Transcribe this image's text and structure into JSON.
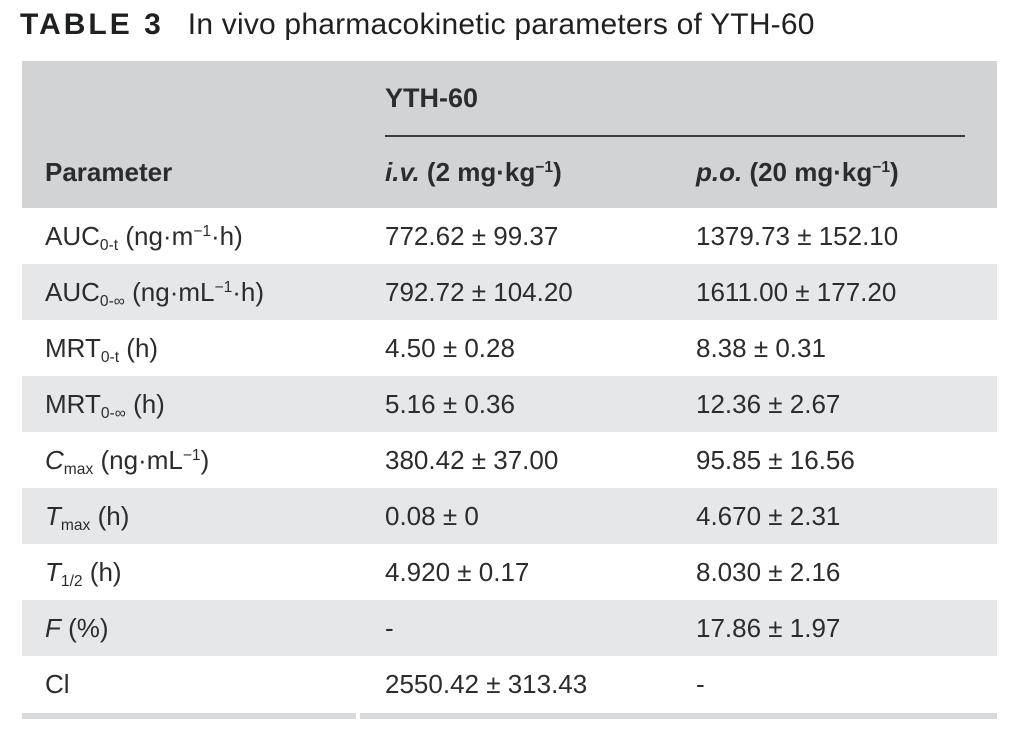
{
  "caption": {
    "tag": "TABLE 3",
    "text": "In vivo pharmacokinetic parameters of YTH-60"
  },
  "table": {
    "group_header": "YTH-60",
    "columns": {
      "param": "Parameter",
      "iv": "*i.v.* (2 mg·kg^−1^)",
      "po": "*p.o.* (20 mg·kg^−1^)"
    },
    "rows": [
      {
        "param": "AUC~0-t~ (ng·m^−1^·h)",
        "iv": "772.62 ± 99.37",
        "po": "1379.73 ± 152.10"
      },
      {
        "param": "AUC~0-∞~ (ng·mL^−1^·h)",
        "iv": "792.72 ± 104.20",
        "po": "1611.00 ± 177.20"
      },
      {
        "param": "MRT~0-t~ (h)",
        "iv": "4.50 ± 0.28",
        "po": "8.38 ± 0.31"
      },
      {
        "param": "MRT~0-∞~ (h)",
        "iv": "5.16 ± 0.36",
        "po": "12.36 ± 2.67"
      },
      {
        "param": "*C*~max~ (ng·mL^−1^)",
        "iv": "380.42 ± 37.00",
        "po": "95.85 ± 16.56"
      },
      {
        "param": "*T*~max~ (h)",
        "iv": "0.08 ± 0",
        "po": "4.670 ± 2.31"
      },
      {
        "param": "*T*~1/2~ (h)",
        "iv": "4.920 ± 0.17",
        "po": "8.030 ± 2.16"
      },
      {
        "param": "*F* (%)",
        "iv": "-",
        "po": "17.86 ± 1.97"
      },
      {
        "param": "Cl",
        "iv": "2550.42 ± 313.43",
        "po": "-"
      }
    ]
  },
  "colors": {
    "header_bg": "#d2d3d4",
    "stripe_bg": "#e6e7e8",
    "text": "#2b2c2e",
    "rule": "#3b3c3e",
    "bottom_rule": "#d8d9da"
  }
}
